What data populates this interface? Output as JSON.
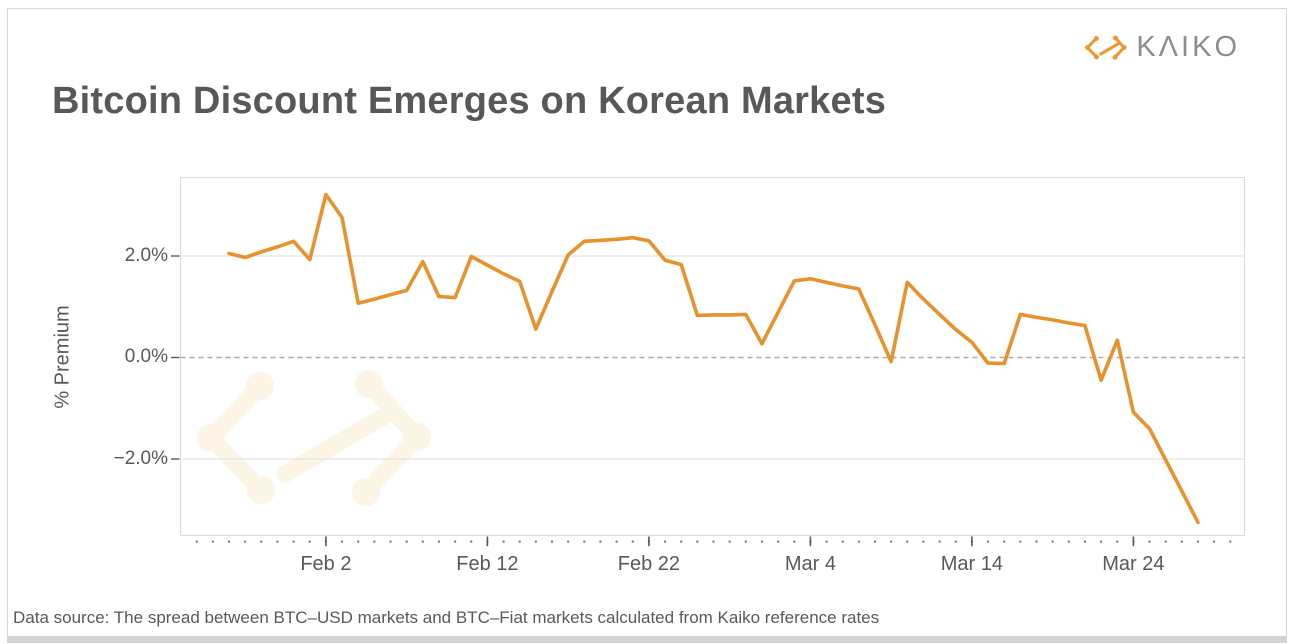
{
  "header": {
    "logo_text": "KΛIKO",
    "logo_text_color": "#8D8D8D",
    "logo_mark_color": "#F0962F",
    "logo_mark_icon": "kaiko-chevrons-mark"
  },
  "title": "Bitcoin Discount Emerges on Korean Markets",
  "caption": "Data source: The spread between BTC–USD markets and BTC–Fiat markets calculated from Kaiko reference rates",
  "chart_data": {
    "type": "line",
    "title": "Bitcoin Discount Emerges on Korean Markets",
    "xlabel": "",
    "ylabel": "% Premium",
    "line_color": "#E8912D",
    "grid": true,
    "legend_position": "none",
    "ylim": [
      -3.55,
      3.55
    ],
    "y_tick_values": [
      2.0,
      0.0,
      -2.0
    ],
    "y_tick_labels": [
      "2.0%",
      "0.0%",
      "−2.0%"
    ],
    "zero_line_style": "dashed",
    "x_tick_labels": [
      "Feb 2",
      "Feb 12",
      "Feb 22",
      "Mar 4",
      "Mar 14",
      "Mar 24"
    ],
    "x_tick_indices": [
      6,
      16,
      26,
      36,
      46,
      56
    ],
    "watermark_icon": "kaiko-chevrons-mark",
    "watermark_color": "#FCF4E5",
    "colors": {
      "plot_border": "#D9D9D9",
      "gridline": "#E8E8E8",
      "zero_line": "#AAAAAA",
      "tick": "#595959",
      "minor_tick_dot": "#707070"
    },
    "series": [
      {
        "name": "% Premium",
        "x": [
          "Jan 27",
          "Jan 28",
          "Jan 29",
          "Jan 30",
          "Jan 31",
          "Feb 1",
          "Feb 2",
          "Feb 3",
          "Feb 4",
          "Feb 5",
          "Feb 6",
          "Feb 7",
          "Feb 8",
          "Feb 9",
          "Feb 10",
          "Feb 11",
          "Feb 12",
          "Feb 13",
          "Feb 14",
          "Feb 15",
          "Feb 16",
          "Feb 17",
          "Feb 18",
          "Feb 19",
          "Feb 20",
          "Feb 21",
          "Feb 22",
          "Feb 23",
          "Feb 24",
          "Feb 25",
          "Feb 26",
          "Feb 27",
          "Feb 28",
          "Mar 1",
          "Mar 2",
          "Mar 3",
          "Mar 4",
          "Mar 5",
          "Mar 6",
          "Mar 7",
          "Mar 8",
          "Mar 9",
          "Mar 10",
          "Mar 11",
          "Mar 12",
          "Mar 13",
          "Mar 14",
          "Mar 15",
          "Mar 16",
          "Mar 17",
          "Mar 18",
          "Mar 19",
          "Mar 20",
          "Mar 21",
          "Mar 22",
          "Mar 23",
          "Mar 24",
          "Mar 25",
          "Mar 26",
          "Mar 27",
          "Mar 28"
        ],
        "values": [
          2.05,
          1.97,
          2.08,
          2.18,
          2.29,
          1.93,
          3.21,
          2.76,
          1.07,
          1.15,
          1.24,
          1.32,
          1.89,
          1.2,
          1.18,
          1.99,
          1.82,
          1.65,
          1.5,
          0.56,
          1.3,
          2.02,
          2.29,
          2.31,
          2.33,
          2.36,
          2.3,
          1.92,
          1.83,
          0.83,
          0.84,
          0.84,
          0.85,
          0.27,
          0.89,
          1.51,
          1.55,
          1.48,
          1.41,
          1.35,
          0.64,
          -0.08,
          1.48,
          1.15,
          0.85,
          0.55,
          0.3,
          -0.11,
          -0.12,
          0.85,
          0.79,
          0.74,
          0.68,
          0.63,
          -0.45,
          0.34,
          -1.08,
          -1.4,
          -2.02,
          -2.63,
          -3.25
        ]
      }
    ]
  }
}
